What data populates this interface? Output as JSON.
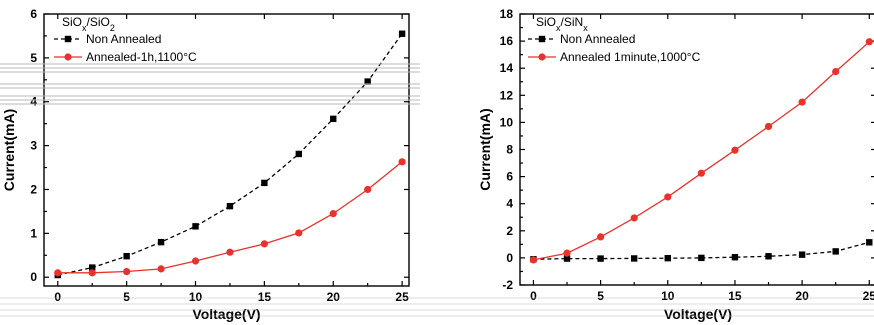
{
  "chart_data": [
    {
      "type": "line",
      "legend_title": "SiOx/SiO2",
      "legend_position": "top-left",
      "xlabel": "Voltage(V)",
      "ylabel": "Current(mA)",
      "xlim": [
        -1,
        25.5
      ],
      "ylim": [
        -0.2,
        6
      ],
      "xticks": [
        0,
        5,
        10,
        15,
        20,
        25
      ],
      "yticks": [
        0,
        1,
        2,
        3,
        4,
        5,
        6
      ],
      "grid": false,
      "series": [
        {
          "name": "Non Annealed",
          "color": "#000000",
          "marker": "square",
          "line_style": "dashed",
          "x": [
            0,
            2.5,
            5,
            7.5,
            10,
            12.5,
            15,
            17.5,
            20,
            22.5,
            25
          ],
          "y": [
            0.05,
            0.22,
            0.48,
            0.8,
            1.16,
            1.62,
            2.15,
            2.81,
            3.61,
            4.46,
            5.55
          ]
        },
        {
          "name": "Annealed-1h,1100°C",
          "color": "#e8322b",
          "marker": "circle",
          "line_style": "solid",
          "x": [
            0,
            2.5,
            5,
            7.5,
            10,
            12.5,
            15,
            17.5,
            20,
            22.5,
            25
          ],
          "y": [
            0.1,
            0.1,
            0.13,
            0.19,
            0.37,
            0.57,
            0.76,
            1.01,
            1.45,
            2.0,
            2.63
          ]
        }
      ]
    },
    {
      "type": "line",
      "legend_title": "SiOx/SiNx",
      "legend_position": "top-left",
      "xlabel": "Voltage(V)",
      "ylabel": "Current(mA)",
      "xlim": [
        -1,
        25.5
      ],
      "ylim": [
        -2,
        18
      ],
      "xticks": [
        0,
        5,
        10,
        15,
        20,
        25
      ],
      "yticks": [
        -2,
        0,
        2,
        4,
        6,
        8,
        10,
        12,
        14,
        16,
        18
      ],
      "grid": false,
      "series": [
        {
          "name": "Non Annealed",
          "color": "#000000",
          "marker": "square",
          "line_style": "dashed",
          "x": [
            0,
            2.5,
            5,
            7.5,
            10,
            12.5,
            15,
            17.5,
            20,
            22.5,
            25
          ],
          "y": [
            -0.1,
            -0.05,
            -0.05,
            -0.04,
            -0.02,
            0.0,
            0.05,
            0.12,
            0.24,
            0.48,
            1.15
          ]
        },
        {
          "name": "Annealed 1minute,1000°C",
          "color": "#e8322b",
          "marker": "circle",
          "line_style": "solid",
          "x": [
            0,
            2.5,
            5,
            7.5,
            10,
            12.5,
            15,
            17.5,
            20,
            22.5,
            25
          ],
          "y": [
            -0.15,
            0.35,
            1.55,
            2.95,
            4.5,
            6.25,
            7.95,
            9.7,
            11.5,
            13.75,
            15.95
          ]
        }
      ]
    }
  ]
}
